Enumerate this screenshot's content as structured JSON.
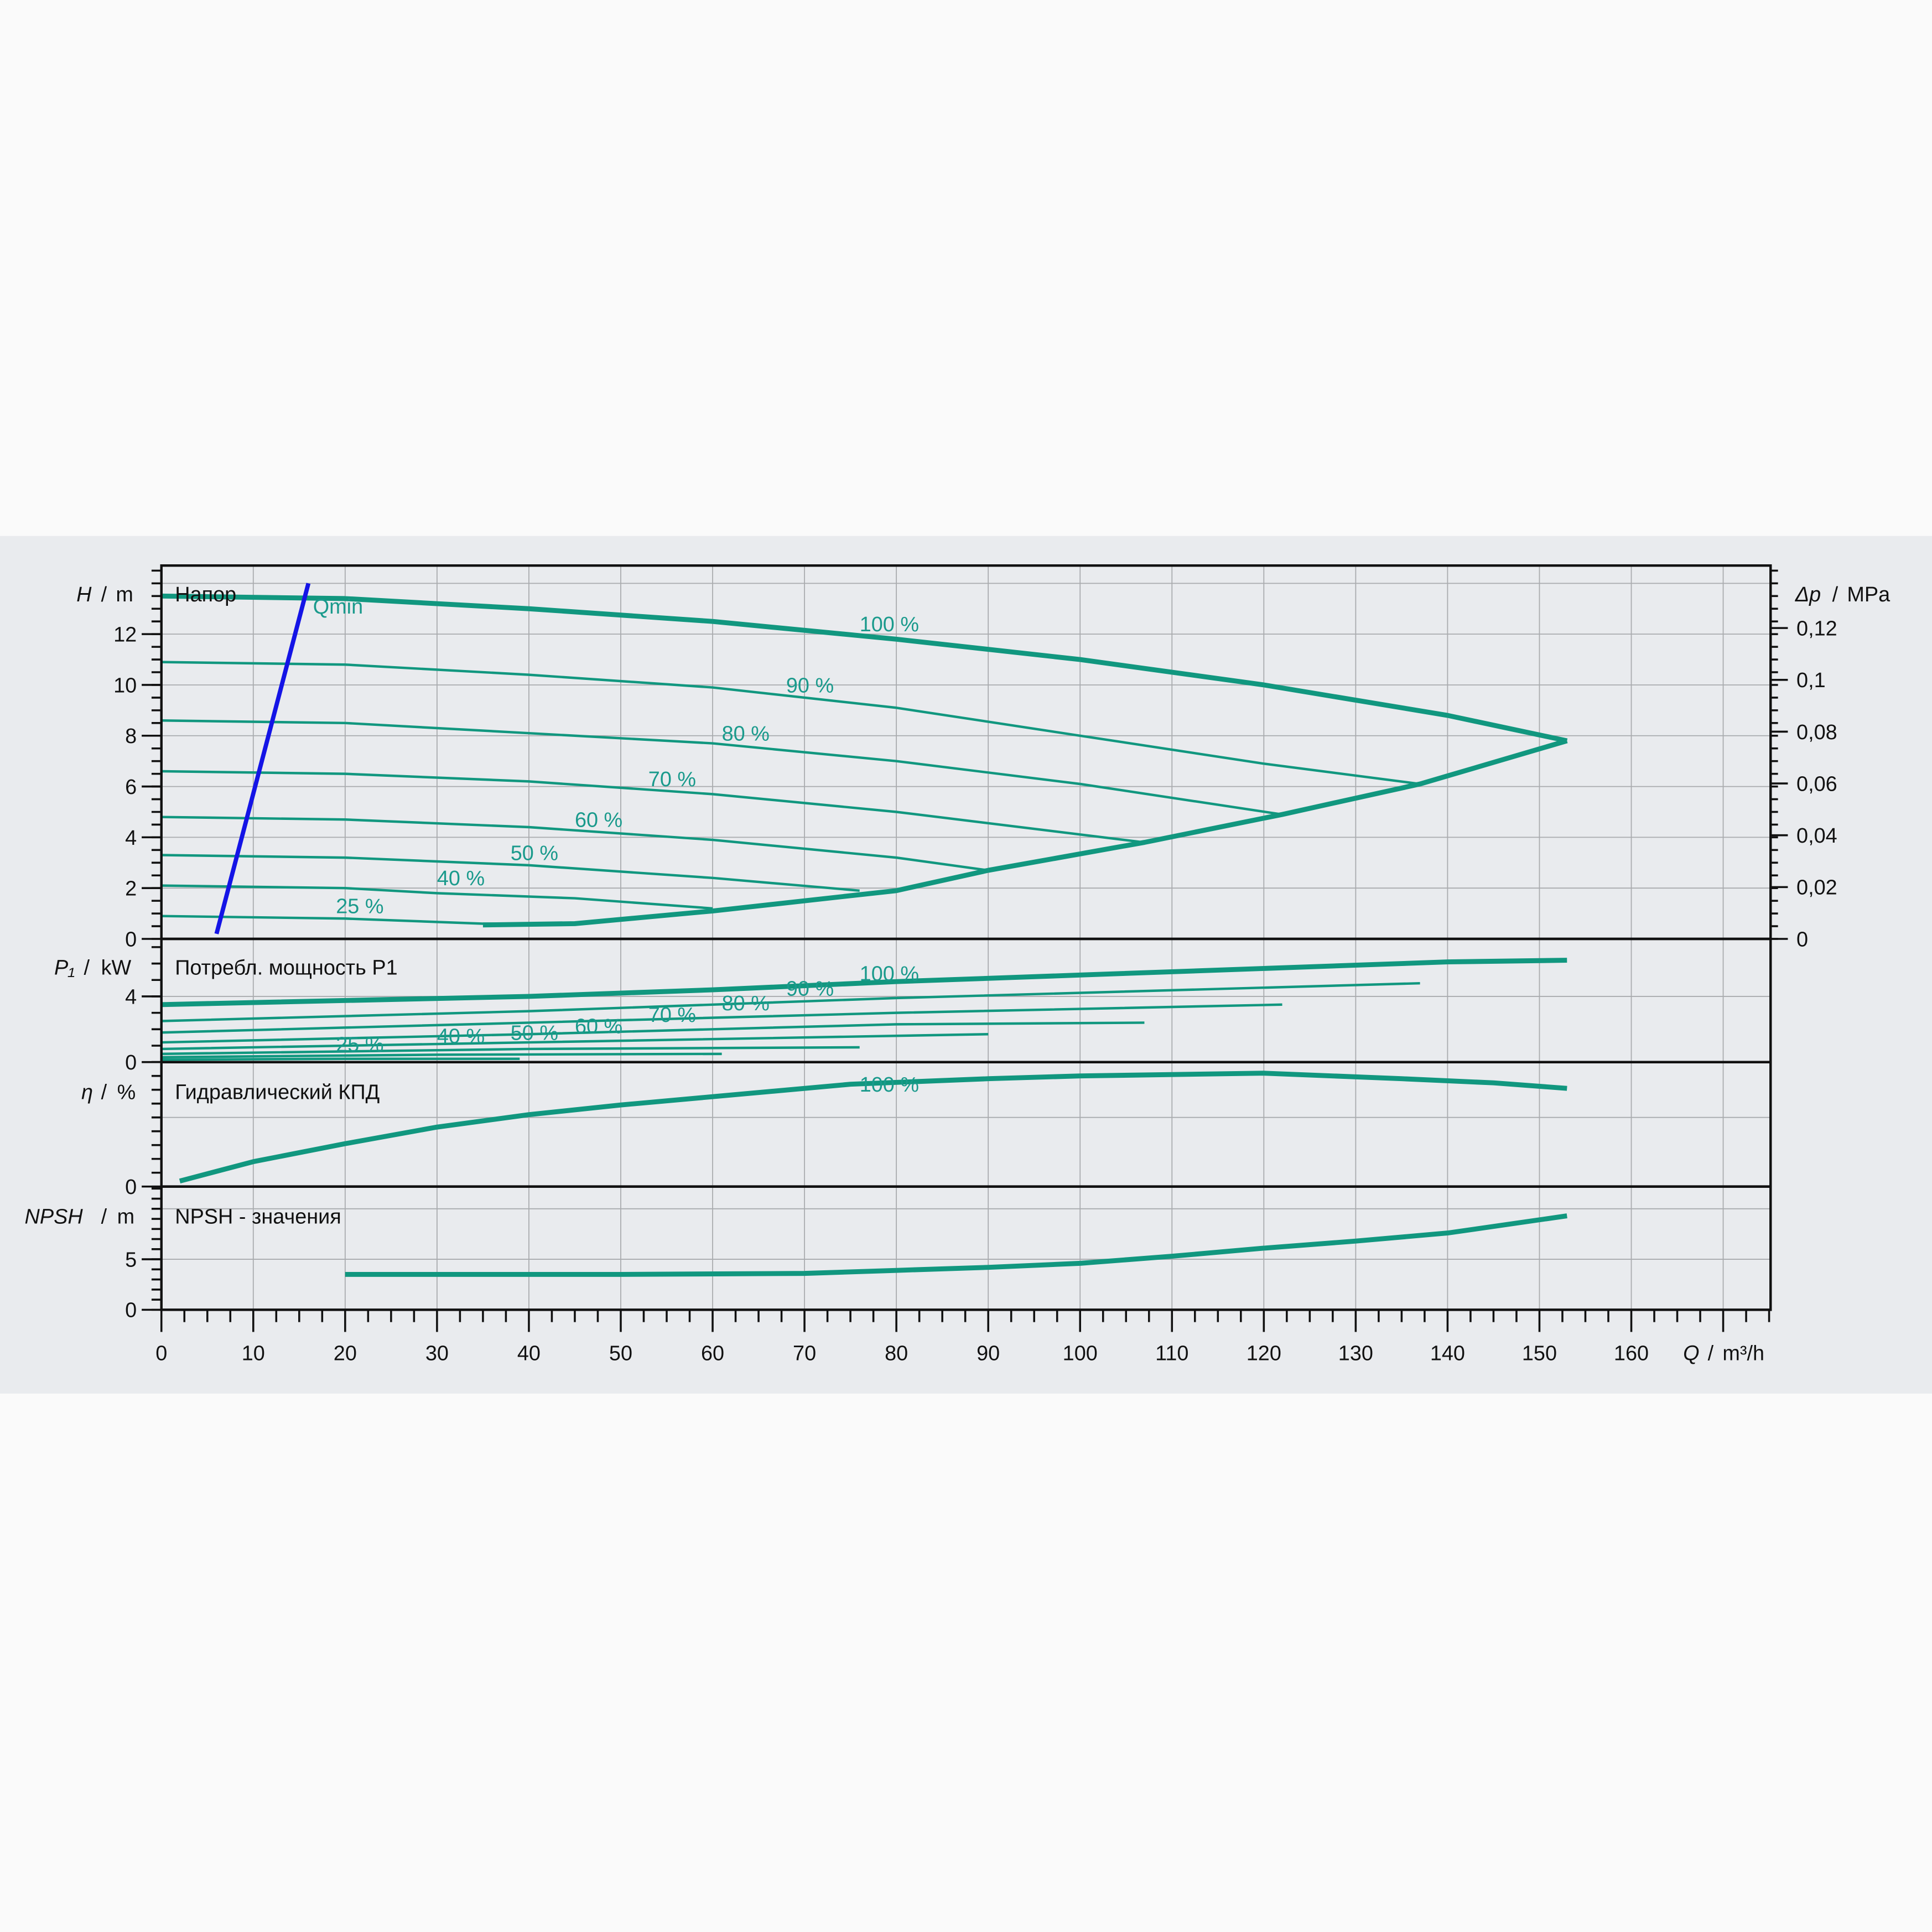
{
  "chart_data": [
    {
      "type": "line",
      "panel": "head",
      "title": "Напор",
      "ylabel_symbol": "H",
      "ylabel_unit": "m",
      "right_ylabel_symbol": "Δp",
      "right_ylabel_unit": "MPa",
      "xlabel_symbol": "Q",
      "xlabel_unit": "m³/h",
      "xlim": [
        0,
        175
      ],
      "ylim": [
        0,
        14.7
      ],
      "yticks": [
        "0",
        "2",
        "4",
        "6",
        "8",
        "10",
        "12"
      ],
      "right_yticks": [
        "0",
        "0,02",
        "0,04",
        "0,06",
        "0,08",
        "0,1",
        "0,12"
      ],
      "grid": true,
      "series": [
        {
          "name": "100 %",
          "x": [
            0,
            20,
            40,
            60,
            80,
            100,
            120,
            140,
            153
          ],
          "y": [
            13.5,
            13.4,
            13.0,
            12.5,
            11.8,
            11.0,
            10.0,
            8.8,
            7.8
          ],
          "label_at": [
            76,
            12.4
          ]
        },
        {
          "name": "90 %",
          "x": [
            0,
            20,
            40,
            60,
            80,
            100,
            120,
            137
          ],
          "y": [
            10.9,
            10.8,
            10.4,
            9.9,
            9.1,
            8.0,
            6.9,
            6.1
          ],
          "label_at": [
            68,
            10.0
          ]
        },
        {
          "name": "80 %",
          "x": [
            0,
            20,
            40,
            60,
            80,
            100,
            122
          ],
          "y": [
            8.6,
            8.5,
            8.1,
            7.7,
            7.0,
            6.1,
            4.9
          ],
          "label_at": [
            61,
            8.1
          ]
        },
        {
          "name": "70 %",
          "x": [
            0,
            20,
            40,
            60,
            80,
            107
          ],
          "y": [
            6.6,
            6.5,
            6.2,
            5.7,
            5.0,
            3.8
          ],
          "label_at": [
            53,
            6.3
          ]
        },
        {
          "name": "60 %",
          "x": [
            0,
            20,
            40,
            60,
            80,
            90
          ],
          "y": [
            4.8,
            4.7,
            4.4,
            3.9,
            3.2,
            2.7
          ],
          "label_at": [
            45,
            4.7
          ]
        },
        {
          "name": "50 %",
          "x": [
            0,
            20,
            40,
            60,
            76
          ],
          "y": [
            3.3,
            3.2,
            2.9,
            2.4,
            1.9
          ],
          "label_at": [
            38,
            3.4
          ]
        },
        {
          "name": "40 %",
          "x": [
            0,
            20,
            30,
            45,
            60
          ],
          "y": [
            2.1,
            2.0,
            1.8,
            1.6,
            1.2
          ],
          "label_at": [
            30,
            2.4
          ]
        },
        {
          "name": "25 %",
          "x": [
            0,
            20,
            35,
            45
          ],
          "y": [
            0.9,
            0.8,
            0.6,
            0.6
          ],
          "label_at": [
            19,
            1.3
          ]
        },
        {
          "name": "",
          "x": [
            35,
            45,
            60,
            80,
            90,
            107,
            122,
            137,
            153
          ],
          "y": [
            0.55,
            0.6,
            1.1,
            1.9,
            2.7,
            3.8,
            4.9,
            6.1,
            7.8
          ]
        }
      ],
      "qmin": {
        "name": "Qmin",
        "x": [
          6,
          16
        ],
        "y": [
          0.2,
          14.0
        ]
      }
    },
    {
      "type": "line",
      "panel": "power",
      "title": "Потребл. мощность P1",
      "ylabel_symbol": "P₁",
      "ylabel_unit": "kW",
      "ylim": [
        0,
        7.5
      ],
      "yticks": [
        "0",
        "4"
      ],
      "series": [
        {
          "name": "100 %",
          "x": [
            0,
            40,
            60,
            80,
            100,
            120,
            140,
            153
          ],
          "y": [
            3.5,
            4.0,
            4.4,
            4.9,
            5.3,
            5.7,
            6.1,
            6.2
          ],
          "label_at": [
            76,
            5.4
          ]
        },
        {
          "name": "90 %",
          "x": [
            0,
            40,
            80,
            137
          ],
          "y": [
            2.5,
            3.1,
            3.9,
            4.8
          ],
          "label_at": [
            68,
            4.5
          ]
        },
        {
          "name": "80 %",
          "x": [
            0,
            40,
            80,
            122
          ],
          "y": [
            1.8,
            2.4,
            3.0,
            3.5
          ],
          "label_at": [
            61,
            3.6
          ]
        },
        {
          "name": "70 %",
          "x": [
            0,
            40,
            80,
            107
          ],
          "y": [
            1.2,
            1.7,
            2.3,
            2.4
          ],
          "label_at": [
            53,
            2.9
          ]
        },
        {
          "name": "60 %",
          "x": [
            0,
            40,
            90
          ],
          "y": [
            0.8,
            1.2,
            1.7
          ],
          "label_at": [
            45,
            2.2
          ]
        },
        {
          "name": "50 %",
          "x": [
            0,
            40,
            76
          ],
          "y": [
            0.5,
            0.8,
            0.9
          ],
          "label_at": [
            38,
            1.8
          ]
        },
        {
          "name": "40 %",
          "x": [
            0,
            30,
            61
          ],
          "y": [
            0.3,
            0.45,
            0.5
          ],
          "label_at": [
            30,
            1.6
          ]
        },
        {
          "name": "25 %",
          "x": [
            0,
            20,
            39
          ],
          "y": [
            0.15,
            0.2,
            0.2
          ],
          "label_at": [
            19,
            1.1
          ]
        }
      ]
    },
    {
      "type": "line",
      "panel": "efficiency",
      "title": "Гидравлический КПД",
      "ylabel_symbol": "η",
      "ylabel_unit": "%",
      "ylim": [
        0,
        90
      ],
      "yticks": [
        "0"
      ],
      "series": [
        {
          "name": "100 %",
          "x": [
            2,
            10,
            20,
            30,
            40,
            50,
            60,
            75,
            90,
            100,
            120,
            135,
            145,
            153
          ],
          "y": [
            4,
            18,
            31,
            43,
            52,
            59,
            65,
            74,
            78,
            80,
            82,
            78,
            75,
            71
          ],
          "label_at": [
            76,
            74
          ]
        }
      ]
    },
    {
      "type": "line",
      "panel": "npsh",
      "title": "NPSH - значения",
      "ylabel_symbol": "NPSH",
      "ylabel_unit": "m",
      "ylim": [
        0,
        12.2
      ],
      "yticks": [
        "0",
        "5"
      ],
      "series": [
        {
          "name": "",
          "x": [
            20,
            50,
            70,
            80,
            90,
            100,
            110,
            120,
            130,
            140,
            153
          ],
          "y": [
            3.5,
            3.5,
            3.6,
            3.9,
            4.2,
            4.6,
            5.3,
            6.1,
            6.8,
            7.6,
            9.3
          ]
        }
      ]
    }
  ],
  "xticks": [
    "0",
    "10",
    "20",
    "30",
    "40",
    "50",
    "60",
    "70",
    "80",
    "90",
    "100",
    "110",
    "120",
    "130",
    "140",
    "150",
    "160"
  ],
  "colors": {
    "curve": "#11977f",
    "label": "#1a9a8c",
    "qmin": "#1414e6",
    "band": "#e9ebee",
    "grid": "#a9abae"
  }
}
